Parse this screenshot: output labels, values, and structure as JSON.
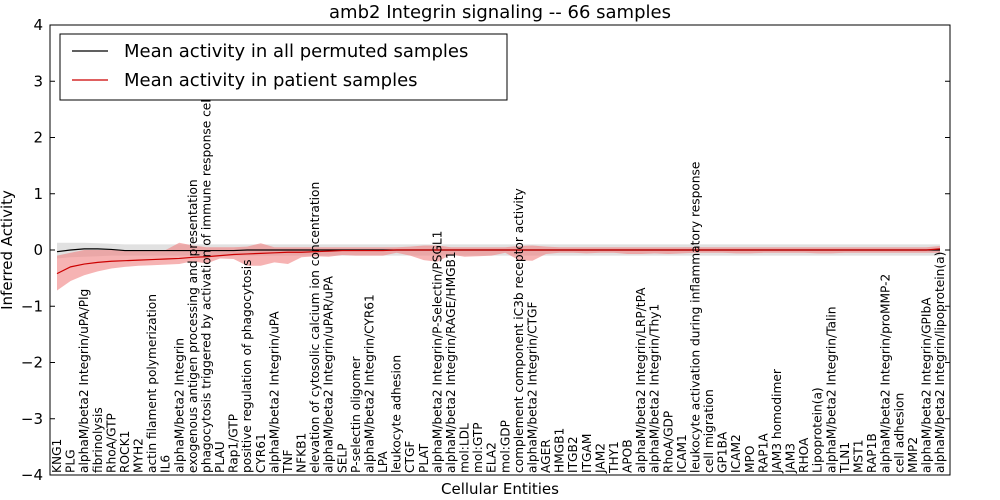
{
  "chart_data": {
    "type": "line",
    "title": "amb2 Integrin signaling -- 66 samples",
    "xlabel": "Cellular Entities",
    "ylabel": "Inferred Activity",
    "ylim": [
      -4,
      4
    ],
    "yticks": [
      "4",
      "3",
      "2",
      "1",
      "0",
      "−1",
      "−2",
      "−3",
      "−4"
    ],
    "legend_position": "top-left",
    "categories": [
      "KNG1",
      "PLG",
      "alphaM/beta2 Integrin/uPA/Plg",
      "fibrinolysis",
      "RhoA/GTP",
      "ROCK1",
      "MYH2",
      "actin filament polymerization",
      "IL6",
      "alphaM/beta2 Integrin",
      "exogenous antigen processing and presentation",
      "phagocytosis triggered by activation of immune response cell surface",
      "PLAU",
      "Rap1/GTP",
      "positive regulation of phagocytosis",
      "CYR61",
      "alphaM/beta2 Integrin/uPA",
      "TNF",
      "NFKB1",
      "elevation of cytosolic calcium ion concentration",
      "alphaM/beta2 Integrin/uPAR/uPA",
      "SELP",
      "P-selectin oligomer",
      "alphaM/beta2 Integrin/CYR61",
      "LPA",
      "leukocyte adhesion",
      "CTGF",
      "PLAT",
      "alphaM/beta2 Integrin/P-Selectin/PSGL1",
      "alphaM/beta2 Integrin/RAGE/HMGB1",
      "mol:LDL",
      "mol:GTP",
      "ELA2",
      "mol:GDP",
      "complement component iC3b receptor activity",
      "alphaM/beta2 Integrin/CTGF",
      "AGER",
      "HMGB1",
      "ITGB2",
      "ITGAM",
      "JAM2",
      "THY1",
      "APOB",
      "alphaM/beta2 Integrin/LRP/tPA",
      "alphaM/beta2 Integrin/Thy1",
      "RhoA/GDP",
      "ICAM1",
      "leukocyte activation during inflammatory response",
      "cell migration",
      "GP1BA",
      "ICAM2",
      "MPO",
      "RAP1A",
      "JAM3 homodimer",
      "JAM3",
      "RHOA",
      "Lipoprotein(a)",
      "alphaM/beta2 Integrin/Talin",
      "TLN1",
      "MST1",
      "RAP1B",
      "alphaM/beta2 Integrin/proMMP-2",
      "cell adhesion",
      "MMP2",
      "alphaM/beta2 Integrin/GPIbA",
      "alphaM/beta2 Integrin/lipoprotein(a)"
    ],
    "series": [
      {
        "name": "Mean activity in all permuted samples",
        "color": "#000000",
        "band_color": "#c8c8c8",
        "values": [
          -0.03,
          0.0,
          0.02,
          0.02,
          0.01,
          -0.01,
          -0.01,
          -0.01,
          -0.01,
          -0.01,
          -0.01,
          -0.01,
          -0.01,
          -0.01,
          0.0,
          0.0,
          0.0,
          0.0,
          0.0,
          0.0,
          0.0,
          0.0,
          0.0,
          0.0,
          0.0,
          0.0,
          0.0,
          0.0,
          0.0,
          0.0,
          0.0,
          0.0,
          0.0,
          0.0,
          0.0,
          0.0,
          0.0,
          0.0,
          0.0,
          0.0,
          0.0,
          0.0,
          0.0,
          0.0,
          0.0,
          0.0,
          0.0,
          0.0,
          0.0,
          0.0,
          0.0,
          0.0,
          0.0,
          0.0,
          0.0,
          0.0,
          0.0,
          0.0,
          0.0,
          0.0,
          0.0,
          0.0,
          0.0,
          0.0,
          0.0,
          0.0
        ],
        "lower": [
          -0.15,
          -0.13,
          -0.12,
          -0.11,
          -0.1,
          -0.1,
          -0.1,
          -0.1,
          -0.1,
          -0.1,
          -0.1,
          -0.1,
          -0.1,
          -0.1,
          -0.1,
          -0.1,
          -0.1,
          -0.1,
          -0.1,
          -0.1,
          -0.1,
          -0.1,
          -0.1,
          -0.1,
          -0.1,
          -0.1,
          -0.1,
          -0.1,
          -0.1,
          -0.1,
          -0.1,
          -0.1,
          -0.1,
          -0.1,
          -0.1,
          -0.1,
          -0.1,
          -0.1,
          -0.1,
          -0.1,
          -0.1,
          -0.1,
          -0.1,
          -0.1,
          -0.1,
          -0.1,
          -0.1,
          -0.1,
          -0.1,
          -0.1,
          -0.1,
          -0.1,
          -0.1,
          -0.1,
          -0.1,
          -0.1,
          -0.1,
          -0.1,
          -0.1,
          -0.1,
          -0.1,
          -0.1,
          -0.1,
          -0.1,
          -0.1,
          -0.1
        ],
        "upper": [
          0.13,
          0.13,
          0.13,
          0.12,
          0.11,
          0.1,
          0.1,
          0.1,
          0.1,
          0.1,
          0.1,
          0.1,
          0.1,
          0.1,
          0.1,
          0.1,
          0.1,
          0.1,
          0.1,
          0.1,
          0.1,
          0.1,
          0.1,
          0.1,
          0.1,
          0.1,
          0.1,
          0.1,
          0.1,
          0.1,
          0.1,
          0.1,
          0.1,
          0.1,
          0.1,
          0.1,
          0.1,
          0.1,
          0.1,
          0.1,
          0.1,
          0.1,
          0.1,
          0.1,
          0.1,
          0.1,
          0.1,
          0.1,
          0.1,
          0.1,
          0.1,
          0.1,
          0.1,
          0.1,
          0.1,
          0.1,
          0.1,
          0.1,
          0.1,
          0.1,
          0.1,
          0.1,
          0.1,
          0.1,
          0.1,
          0.1
        ]
      },
      {
        "name": "Mean activity in patient samples",
        "color": "#cc0000",
        "band_color": "#f08080",
        "values": [
          -0.42,
          -0.3,
          -0.25,
          -0.22,
          -0.2,
          -0.19,
          -0.18,
          -0.17,
          -0.16,
          -0.15,
          -0.13,
          -0.12,
          -0.1,
          -0.08,
          -0.07,
          -0.06,
          -0.05,
          -0.04,
          -0.04,
          -0.03,
          -0.02,
          -0.01,
          -0.01,
          -0.01,
          -0.01,
          0.0,
          0.0,
          0.0,
          0.0,
          0.0,
          0.0,
          0.0,
          0.0,
          0.0,
          0.0,
          0.0,
          0.0,
          0.0,
          0.0,
          0.0,
          0.0,
          0.0,
          0.0,
          0.0,
          0.0,
          0.0,
          0.0,
          0.0,
          0.0,
          0.0,
          0.0,
          0.0,
          0.0,
          0.0,
          0.0,
          0.0,
          0.0,
          0.0,
          0.0,
          0.0,
          0.0,
          0.0,
          0.0,
          0.0,
          0.0,
          0.02
        ],
        "lower": [
          -0.72,
          -0.55,
          -0.45,
          -0.38,
          -0.33,
          -0.3,
          -0.28,
          -0.27,
          -0.26,
          -0.25,
          -0.2,
          -0.24,
          -0.15,
          -0.16,
          -0.28,
          -0.28,
          -0.22,
          -0.25,
          -0.13,
          -0.11,
          -0.12,
          -0.09,
          -0.1,
          -0.1,
          -0.1,
          -0.05,
          -0.1,
          -0.18,
          -0.21,
          -0.08,
          -0.12,
          -0.11,
          -0.1,
          -0.05,
          -0.18,
          -0.19,
          -0.07,
          -0.05,
          -0.05,
          -0.06,
          -0.05,
          -0.05,
          -0.07,
          -0.07,
          -0.06,
          -0.07,
          -0.06,
          -0.05,
          -0.05,
          -0.05,
          -0.06,
          -0.06,
          -0.05,
          -0.05,
          -0.05,
          -0.05,
          -0.06,
          -0.06,
          -0.05,
          -0.05,
          -0.05,
          -0.05,
          -0.05,
          -0.05,
          -0.05,
          -0.05
        ],
        "upper": [
          -0.1,
          -0.05,
          0.0,
          0.0,
          0.0,
          0.0,
          0.0,
          0.0,
          0.0,
          0.13,
          0.08,
          0.05,
          0.05,
          0.05,
          0.06,
          0.12,
          0.05,
          0.05,
          0.05,
          0.05,
          0.05,
          0.05,
          0.05,
          0.05,
          0.05,
          0.05,
          0.06,
          0.08,
          0.08,
          0.05,
          0.05,
          0.05,
          0.05,
          0.05,
          0.07,
          0.08,
          0.06,
          0.05,
          0.05,
          0.05,
          0.05,
          0.05,
          0.05,
          0.05,
          0.05,
          0.05,
          0.05,
          0.05,
          0.05,
          0.05,
          0.05,
          0.05,
          0.05,
          0.05,
          0.05,
          0.05,
          0.05,
          0.05,
          0.05,
          0.05,
          0.05,
          0.05,
          0.05,
          0.05,
          0.05,
          0.07
        ]
      }
    ]
  }
}
